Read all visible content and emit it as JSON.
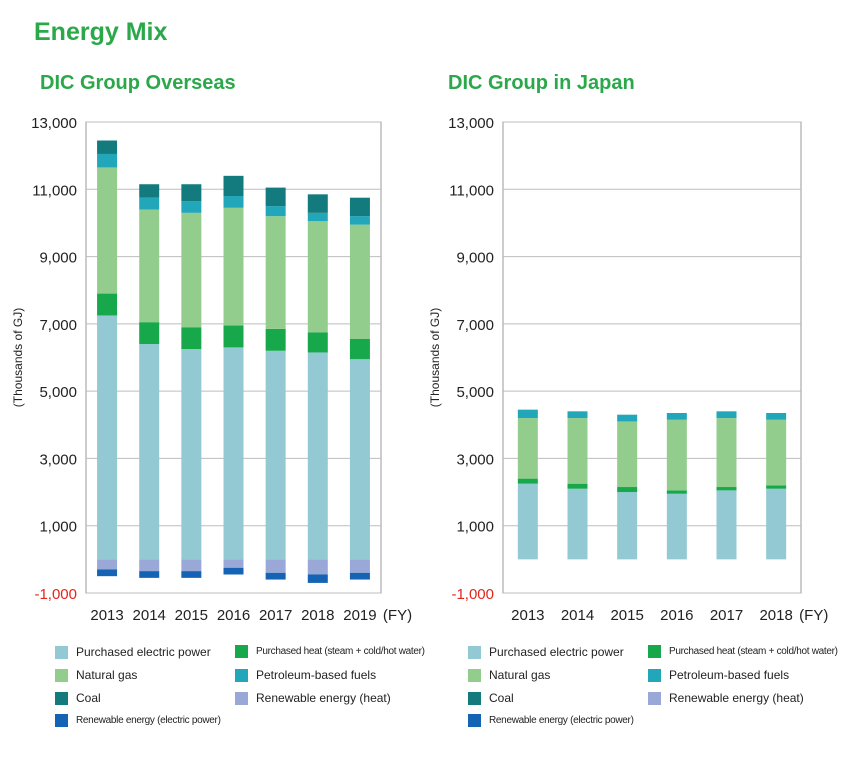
{
  "page": {
    "title": "Energy Mix"
  },
  "colors": {
    "purchased_electric_power": "#93c9d3",
    "purchased_heat": "#17a84b",
    "natural_gas": "#93cd8d",
    "petroleum_based_fuels": "#22a6b9",
    "coal": "#137a7d",
    "renewable_heat": "#9aa8d8",
    "renewable_electric": "#1563b4"
  },
  "legend": [
    {
      "key": "purchased_electric_power",
      "label": "Purchased electric power"
    },
    {
      "key": "purchased_heat",
      "label": "Purchased heat (steam + cold/hot water)"
    },
    {
      "key": "natural_gas",
      "label": "Natural gas"
    },
    {
      "key": "petroleum_based_fuels",
      "label": "Petroleum-based fuels"
    },
    {
      "key": "coal",
      "label": "Coal"
    },
    {
      "key": "renewable_heat",
      "label": "Renewable energy (heat)"
    },
    {
      "key": "renewable_electric",
      "label": "Renewable energy (electric power)"
    }
  ],
  "chart_data": [
    {
      "type": "bar",
      "stacked": true,
      "title": "DIC Group Overseas",
      "ylabel": "(Thousands of GJ)",
      "xunit": "(FY)",
      "ylim": [
        -1000,
        13000
      ],
      "yticks": [
        13000,
        11000,
        9000,
        7000,
        5000,
        3000,
        1000,
        -1000
      ],
      "ytick_labels": [
        "13,000",
        "11,000",
        "9,000",
        "7,000",
        "5,000",
        "3,000",
        "1,000",
        "-1,000"
      ],
      "categories": [
        "2013",
        "2014",
        "2015",
        "2016",
        "2017",
        "2018",
        "2019"
      ],
      "series": [
        {
          "key": "purchased_electric_power",
          "name": "Purchased electric power",
          "values": [
            7250,
            6400,
            6250,
            6300,
            6200,
            6150,
            5950
          ]
        },
        {
          "key": "purchased_heat",
          "name": "Purchased heat (steam + cold/hot water)",
          "values": [
            650,
            650,
            650,
            650,
            650,
            600,
            600
          ]
        },
        {
          "key": "natural_gas",
          "name": "Natural gas",
          "values": [
            3750,
            3350,
            3400,
            3500,
            3350,
            3300,
            3400
          ]
        },
        {
          "key": "petroleum_based_fuels",
          "name": "Petroleum-based fuels",
          "values": [
            400,
            350,
            350,
            350,
            300,
            250,
            250
          ]
        },
        {
          "key": "coal",
          "name": "Coal",
          "values": [
            400,
            400,
            500,
            600,
            550,
            550,
            550
          ]
        },
        {
          "key": "renewable_heat",
          "name": "Renewable energy (heat)",
          "values": [
            -300,
            -350,
            -350,
            -250,
            -400,
            -450,
            -400
          ]
        },
        {
          "key": "renewable_electric",
          "name": "Renewable energy (electric power)",
          "values": [
            -200,
            -200,
            -200,
            -200,
            -200,
            -250,
            -200
          ]
        }
      ]
    },
    {
      "type": "bar",
      "stacked": true,
      "title": "DIC Group in Japan",
      "ylabel": "(Thousands of GJ)",
      "xunit": "(FY)",
      "ylim": [
        -1000,
        13000
      ],
      "yticks": [
        13000,
        11000,
        9000,
        7000,
        5000,
        3000,
        1000,
        -1000
      ],
      "ytick_labels": [
        "13,000",
        "11,000",
        "9,000",
        "7,000",
        "5,000",
        "3,000",
        "1,000",
        "-1,000"
      ],
      "categories": [
        "2013",
        "2014",
        "2015",
        "2016",
        "2017",
        "2018"
      ],
      "series": [
        {
          "key": "purchased_electric_power",
          "name": "Purchased electric power",
          "values": [
            2250,
            2100,
            2000,
            1950,
            2050,
            2100
          ]
        },
        {
          "key": "purchased_heat",
          "name": "Purchased heat (steam + cold/hot water)",
          "values": [
            150,
            150,
            150,
            100,
            100,
            100
          ]
        },
        {
          "key": "natural_gas",
          "name": "Natural gas",
          "values": [
            1800,
            1950,
            1950,
            2100,
            2050,
            1950
          ]
        },
        {
          "key": "petroleum_based_fuels",
          "name": "Petroleum-based fuels",
          "values": [
            250,
            200,
            200,
            200,
            200,
            200
          ]
        },
        {
          "key": "coal",
          "name": "Coal",
          "values": [
            0,
            0,
            0,
            0,
            0,
            0
          ]
        },
        {
          "key": "renewable_heat",
          "name": "Renewable energy (heat)",
          "values": [
            0,
            0,
            0,
            0,
            0,
            0
          ]
        },
        {
          "key": "renewable_electric",
          "name": "Renewable energy (electric power)",
          "values": [
            0,
            0,
            0,
            0,
            0,
            0
          ]
        }
      ]
    }
  ]
}
